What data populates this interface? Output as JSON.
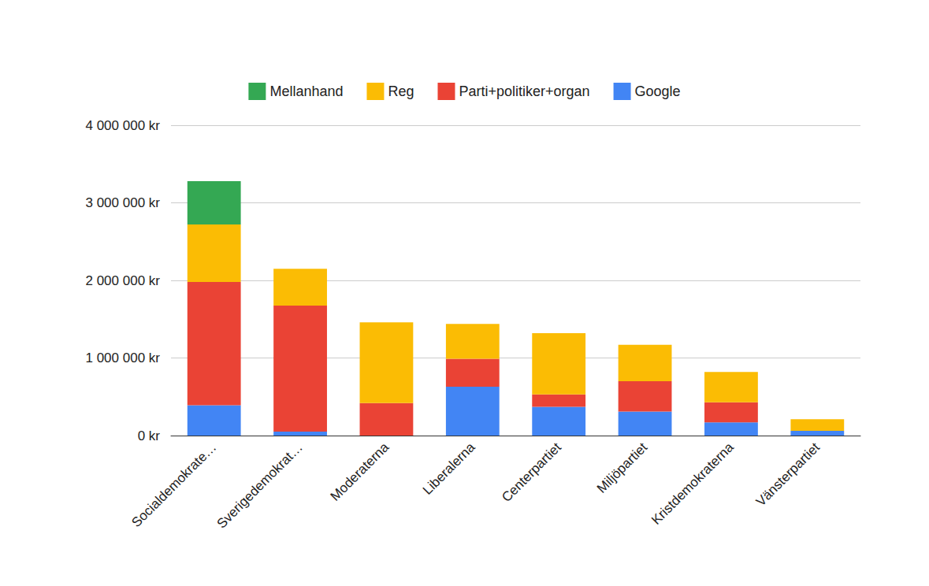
{
  "chart_data": {
    "type": "bar",
    "stacked": true,
    "grid": true,
    "legend": "top",
    "categories": [
      "Socialdemokrate…",
      "Sverigedemokrat…",
      "Moderaterna",
      "Liberalerna",
      "Centerpartiet",
      "Miljöpartiet",
      "Kristdemokraterna",
      "Vänsterpartiet"
    ],
    "series": [
      {
        "name": "Google",
        "color": "#4285f4",
        "values": [
          390000,
          50000,
          0,
          630000,
          370000,
          310000,
          170000,
          60000
        ]
      },
      {
        "name": "Parti+politiker+organ",
        "color": "#ea4335",
        "values": [
          1590000,
          1625000,
          420000,
          360000,
          160000,
          390000,
          260000,
          0
        ]
      },
      {
        "name": "Reg",
        "color": "#fbbc04",
        "values": [
          740000,
          475000,
          1040000,
          450000,
          790000,
          470000,
          390000,
          150000
        ]
      },
      {
        "name": "Mellanhand",
        "color": "#34a853",
        "values": [
          560000,
          0,
          0,
          0,
          0,
          0,
          0,
          0
        ]
      }
    ],
    "ylim": [
      0,
      4000000
    ],
    "yticks": [
      {
        "value": 0,
        "label": "0 kr"
      },
      {
        "value": 1000000,
        "label": "1 000 000 kr"
      },
      {
        "value": 2000000,
        "label": "2 000 000 kr"
      },
      {
        "value": 3000000,
        "label": "3 000 000 kr"
      },
      {
        "value": 4000000,
        "label": "4 000 000 kr"
      }
    ]
  }
}
